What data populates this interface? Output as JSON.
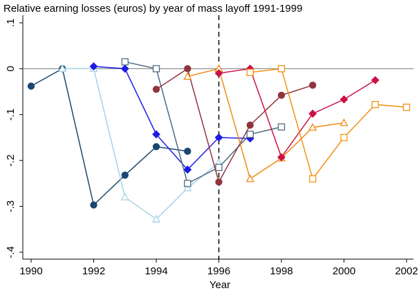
{
  "chart_data": {
    "type": "line",
    "title": "Relative earning losses (euros) by year of mass layoff 1991-1999",
    "x_label": "Year",
    "x": [
      1990,
      1991,
      1992,
      1993,
      1994,
      1995,
      1996,
      1997,
      1998,
      1999,
      2000,
      2001,
      2002
    ],
    "xlim": [
      1990,
      2002
    ],
    "xticks": [
      1990,
      1992,
      1994,
      1996,
      1998,
      2000,
      2002
    ],
    "ylim": [
      -0.4,
      0.1
    ],
    "yticks": [
      {
        "value": 0.1,
        "label": ".1"
      },
      0,
      {
        "value": -0.1,
        "label": "-.1"
      },
      {
        "value": -0.2,
        "label": "-.2"
      },
      {
        "value": -0.3,
        "label": "-.3"
      },
      {
        "value": -0.4,
        "label": "-.4"
      }
    ],
    "hline": 0,
    "vline": 1996,
    "series": [
      {
        "color": "#1a476f",
        "marker": "circle",
        "filled": true,
        "values": [
          -0.038,
          0,
          -0.297,
          -0.232,
          -0.17,
          -0.18,
          null,
          null,
          null,
          null,
          null,
          null,
          null
        ]
      },
      {
        "color": "#a8d2e8",
        "marker": "triangle",
        "filled": false,
        "values": [
          null,
          0,
          0,
          -0.28,
          -0.328,
          -0.26,
          -0.205,
          null,
          null,
          null,
          null,
          null,
          null
        ]
      },
      {
        "color": "#1c1ce6",
        "marker": "diamond",
        "filled": true,
        "values": [
          null,
          null,
          0.005,
          0,
          -0.143,
          -0.22,
          -0.15,
          -0.152,
          null,
          null,
          null,
          null,
          null
        ]
      },
      {
        "color": "#4d6b84",
        "marker": "square",
        "filled": false,
        "values": [
          null,
          null,
          null,
          0.015,
          0,
          -0.25,
          -0.215,
          -0.143,
          -0.127,
          null,
          null,
          null,
          null
        ]
      },
      {
        "color": "#90353b",
        "marker": "circle",
        "filled": true,
        "values": [
          null,
          null,
          null,
          null,
          -0.045,
          0,
          -0.247,
          -0.123,
          -0.058,
          -0.036,
          null,
          null,
          null
        ]
      },
      {
        "color": "#ee8a12",
        "marker": "triangle",
        "filled": false,
        "values": [
          null,
          null,
          null,
          null,
          null,
          -0.017,
          0,
          -0.24,
          -0.195,
          -0.128,
          -0.118,
          null,
          null
        ]
      },
      {
        "color": "#cc1144",
        "marker": "diamond",
        "filled": true,
        "values": [
          null,
          null,
          null,
          null,
          null,
          null,
          -0.01,
          0,
          -0.193,
          -0.098,
          -0.067,
          -0.025,
          null
        ]
      },
      {
        "color": "#f29111",
        "marker": "square",
        "filled": false,
        "values": [
          null,
          null,
          null,
          null,
          null,
          null,
          null,
          -0.008,
          0,
          -0.24,
          -0.15,
          -0.078,
          -0.084
        ]
      }
    ]
  }
}
